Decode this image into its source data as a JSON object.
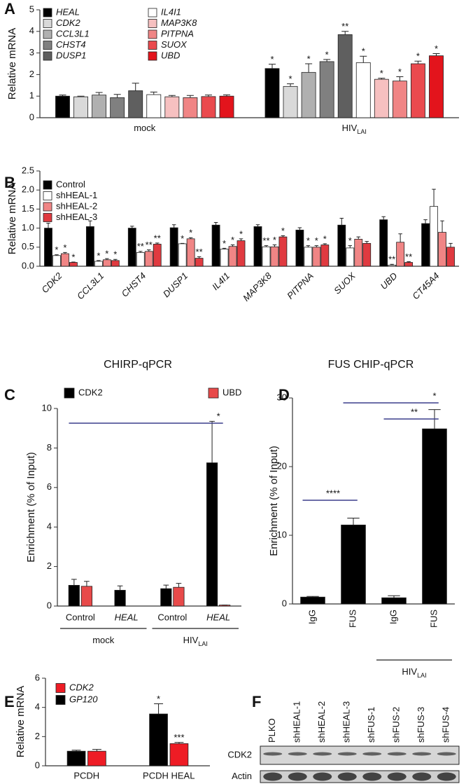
{
  "chart_data": [
    {
      "panel": "A",
      "type": "bar",
      "ylabel": "Relative mRNA",
      "categories": [
        "mock",
        "HIV"
      ],
      "category_subscripts": [
        null,
        "LAI"
      ],
      "ylim": [
        0,
        5
      ],
      "yticks": [
        0,
        1,
        2,
        3,
        4,
        5
      ],
      "series": [
        {
          "name": "HEAL",
          "color": "#000000",
          "values": [
            1.0,
            2.28
          ],
          "errors": [
            0.05,
            0.2
          ],
          "annotations": [
            null,
            "*"
          ]
        },
        {
          "name": "CDK2",
          "color": "#d9d9d9",
          "values": [
            0.97,
            1.45
          ],
          "errors": [
            0.03,
            0.12
          ],
          "annotations": [
            null,
            "*"
          ]
        },
        {
          "name": "CCL3L1",
          "color": "#b0b0b0",
          "values": [
            1.05,
            2.1
          ],
          "errors": [
            0.12,
            0.4
          ],
          "annotations": [
            null,
            "*"
          ]
        },
        {
          "name": "CHST4",
          "color": "#808080",
          "values": [
            0.93,
            2.6
          ],
          "errors": [
            0.15,
            0.1
          ],
          "annotations": [
            null,
            "*"
          ]
        },
        {
          "name": "DUSP1",
          "color": "#5f5f5f",
          "values": [
            1.25,
            3.85
          ],
          "errors": [
            0.35,
            0.15
          ],
          "annotations": [
            null,
            "**"
          ]
        },
        {
          "name": "IL4I1",
          "color": "#ffffff",
          "values": [
            1.07,
            2.55
          ],
          "errors": [
            0.12,
            0.3
          ],
          "annotations": [
            null,
            "*"
          ]
        },
        {
          "name": "MAP3K8",
          "color": "#f6c0c0",
          "values": [
            0.97,
            1.78
          ],
          "errors": [
            0.06,
            0.05
          ],
          "annotations": [
            null,
            "*"
          ]
        },
        {
          "name": "PITPNA",
          "color": "#f08585",
          "values": [
            0.93,
            1.7
          ],
          "errors": [
            0.1,
            0.2
          ],
          "annotations": [
            null,
            "*"
          ]
        },
        {
          "name": "SUOX",
          "color": "#ea4a4e",
          "values": [
            0.98,
            2.5
          ],
          "errors": [
            0.07,
            0.12
          ],
          "annotations": [
            null,
            "*"
          ]
        },
        {
          "name": "UBD",
          "color": "#e3141c",
          "values": [
            1.0,
            2.87
          ],
          "errors": [
            0.06,
            0.1
          ],
          "annotations": [
            null,
            "*"
          ]
        }
      ]
    },
    {
      "panel": "B",
      "type": "bar",
      "ylabel": "Relative mRNA",
      "categories": [
        "CDK2",
        "CCL3L1",
        "CHST4",
        "DUSP1",
        "IL4I1",
        "MAP3K8",
        "PITPNA",
        "SUOX",
        "UBD",
        "CT45A4"
      ],
      "ylim": [
        0,
        2.5
      ],
      "yticks": [
        {
          "value": 0,
          "label": "0.0"
        },
        0.5,
        {
          "value": 1,
          "label": "1.0"
        },
        1.5,
        {
          "value": 2,
          "label": "2.0"
        },
        2.5
      ],
      "series": [
        {
          "name": "Control",
          "color": "#000000",
          "values": [
            1.0,
            1.04,
            1.0,
            1.01,
            1.08,
            1.04,
            0.95,
            1.08,
            1.22,
            1.12
          ],
          "errors": [
            0.13,
            0.15,
            0.05,
            0.08,
            0.07,
            0.05,
            0.06,
            0.18,
            0.08,
            0.1
          ],
          "annotations": [
            null,
            null,
            null,
            null,
            null,
            null,
            null,
            null,
            null,
            null
          ]
        },
        {
          "name": "shHEAL-1",
          "color": "#ffffff",
          "values": [
            0.28,
            0.13,
            0.36,
            0.59,
            0.45,
            0.51,
            0.5,
            0.48,
            0.03,
            1.57
          ],
          "errors": [
            0.02,
            0.02,
            0.03,
            0.01,
            0.02,
            0.03,
            0.04,
            0.06,
            0.02,
            0.45
          ],
          "annotations": [
            "*",
            "*",
            "**",
            "*",
            "*",
            "**",
            "*",
            "*",
            "**",
            null
          ]
        },
        {
          "name": "shHEAL-2",
          "color": "#f08585",
          "values": [
            0.33,
            0.17,
            0.39,
            0.72,
            0.52,
            0.51,
            0.5,
            0.71,
            0.63,
            0.89
          ],
          "errors": [
            0.03,
            0.03,
            0.04,
            0.03,
            0.04,
            0.05,
            0.04,
            0.06,
            0.22,
            0.3
          ],
          "annotations": [
            "*",
            "*",
            "**",
            "*",
            "*",
            "*",
            "*",
            null,
            null,
            null
          ]
        },
        {
          "name": "shHEAL-3",
          "color": "#e03a40",
          "values": [
            0.1,
            0.15,
            0.58,
            0.21,
            0.67,
            0.77,
            0.56,
            0.6,
            0.1,
            0.5
          ],
          "errors": [
            0.01,
            0.03,
            0.03,
            0.04,
            0.05,
            0.03,
            0.03,
            0.05,
            0.02,
            0.1
          ],
          "annotations": [
            "*",
            "*",
            "**",
            "**",
            "*",
            "*",
            "*",
            null,
            "**",
            null
          ]
        }
      ]
    },
    {
      "panel": "C",
      "type": "bar",
      "title": "CHIRP-qPCR",
      "ylabel": "Enrichment (% of Input)",
      "categories": [
        "Control",
        "HEAL",
        "Control",
        "HEAL"
      ],
      "groups": [
        {
          "name": "mock",
          "start": 0,
          "count": 2
        },
        {
          "name": "HIV",
          "subscript": "LAI",
          "start": 2,
          "count": 2
        }
      ],
      "significance": [
        {
          "from": 0,
          "to": 3,
          "label": "*"
        }
      ],
      "ylim": [
        0,
        10
      ],
      "yticks": [
        0,
        2,
        4,
        6,
        8,
        10
      ],
      "series": [
        {
          "name": "CDK2",
          "color": "#000000",
          "values": [
            1.05,
            0.8,
            0.88,
            7.25
          ],
          "errors": [
            0.3,
            0.22,
            0.18,
            2.1
          ]
        },
        {
          "name": "UBD",
          "color": "#e84a4a",
          "values": [
            1.0,
            null,
            0.95,
            0.05
          ],
          "errors": [
            0.25,
            null,
            0.2,
            0
          ]
        }
      ]
    },
    {
      "panel": "D",
      "type": "bar",
      "title": "FUS CHIP-qPCR",
      "ylabel": "Enrichment (% of Input)",
      "categories": [
        "IgG",
        "FUS",
        "IgG",
        "FUS"
      ],
      "groups": [
        {
          "name": "HIV",
          "subscript": "LAI",
          "start": 2,
          "count": 2
        }
      ],
      "significance": [
        {
          "from": 0,
          "to": 1,
          "label": "****"
        },
        {
          "from": 2,
          "to": 3,
          "label": "**"
        },
        {
          "from": 1,
          "to": 3,
          "label": "*"
        }
      ],
      "ylim": [
        0,
        30
      ],
      "yticks": [
        0,
        10,
        20,
        30
      ],
      "series": [
        {
          "color": "#000000",
          "values": [
            1.0,
            11.5,
            0.9,
            25.5
          ],
          "errors": [
            0.1,
            1.0,
            0.3,
            2.8
          ]
        }
      ]
    },
    {
      "panel": "E",
      "type": "bar",
      "ylabel": "Relative mRNA",
      "categories": [
        "PCDH",
        "PCDH HEAL"
      ],
      "ylim": [
        0,
        6
      ],
      "yticks": [
        0,
        2,
        4,
        6
      ],
      "series": [
        {
          "name": "CDK2",
          "color": "#ee1c25",
          "values": [
            1.0,
            1.52
          ],
          "errors": [
            0.12,
            0.08
          ],
          "annotations": [
            null,
            "***"
          ]
        },
        {
          "name": "GP120",
          "color": "#000000",
          "values": [
            1.0,
            3.55
          ],
          "errors": [
            0.07,
            0.7
          ],
          "annotations": [
            null,
            "*"
          ]
        }
      ]
    },
    {
      "panel": "F",
      "type": "blot",
      "lanes": [
        "PLKO",
        "shHEAL-1",
        "shHEAL-2",
        "shHEAL-3",
        "shFUS-1",
        "shFUS-2",
        "shFUS-3",
        "shFUS-4"
      ],
      "rows": [
        "CDK2",
        "Actin"
      ]
    }
  ]
}
